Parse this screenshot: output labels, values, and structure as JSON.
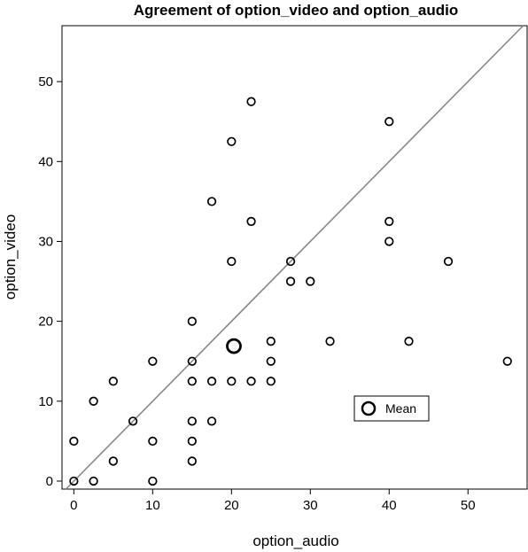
{
  "chart_data": {
    "type": "scatter",
    "title": "Agreement of option_video and option_audio",
    "xlabel": "option_audio",
    "ylabel": "option_video",
    "xlim": [
      -1.5,
      57.5
    ],
    "ylim": [
      -1,
      57
    ],
    "xticks": [
      0,
      10,
      20,
      30,
      40,
      50
    ],
    "yticks": [
      0,
      10,
      20,
      30,
      40,
      50
    ],
    "grid": false,
    "identity_line": true,
    "legend": {
      "label": "Mean",
      "position": "bottom-right"
    },
    "colors": {
      "points": "#000000",
      "line": "#888888",
      "axes": "#000000"
    },
    "points": [
      {
        "x": 0,
        "y": 0
      },
      {
        "x": 0,
        "y": 5
      },
      {
        "x": 2.5,
        "y": 0
      },
      {
        "x": 2.5,
        "y": 10
      },
      {
        "x": 5,
        "y": 2.5
      },
      {
        "x": 5,
        "y": 12.5
      },
      {
        "x": 7.5,
        "y": 7.5
      },
      {
        "x": 10,
        "y": 0
      },
      {
        "x": 10,
        "y": 5
      },
      {
        "x": 10,
        "y": 15
      },
      {
        "x": 15,
        "y": 2.5
      },
      {
        "x": 15,
        "y": 5
      },
      {
        "x": 15,
        "y": 7.5
      },
      {
        "x": 15,
        "y": 12.5
      },
      {
        "x": 15,
        "y": 15
      },
      {
        "x": 15,
        "y": 20
      },
      {
        "x": 17.5,
        "y": 7.5
      },
      {
        "x": 17.5,
        "y": 12.5
      },
      {
        "x": 17.5,
        "y": 35
      },
      {
        "x": 20,
        "y": 12.5
      },
      {
        "x": 20,
        "y": 27.5
      },
      {
        "x": 20,
        "y": 42.5
      },
      {
        "x": 22.5,
        "y": 12.5
      },
      {
        "x": 22.5,
        "y": 32.5
      },
      {
        "x": 22.5,
        "y": 47.5
      },
      {
        "x": 25,
        "y": 12.5
      },
      {
        "x": 25,
        "y": 15
      },
      {
        "x": 25,
        "y": 17.5
      },
      {
        "x": 27.5,
        "y": 25
      },
      {
        "x": 27.5,
        "y": 27.5
      },
      {
        "x": 30,
        "y": 25
      },
      {
        "x": 32.5,
        "y": 17.5
      },
      {
        "x": 40,
        "y": 30
      },
      {
        "x": 40,
        "y": 32.5
      },
      {
        "x": 40,
        "y": 45
      },
      {
        "x": 42.5,
        "y": 17.5
      },
      {
        "x": 47.5,
        "y": 27.5
      },
      {
        "x": 55,
        "y": 15
      }
    ],
    "mean": {
      "x": 20.3,
      "y": 16.9
    }
  }
}
